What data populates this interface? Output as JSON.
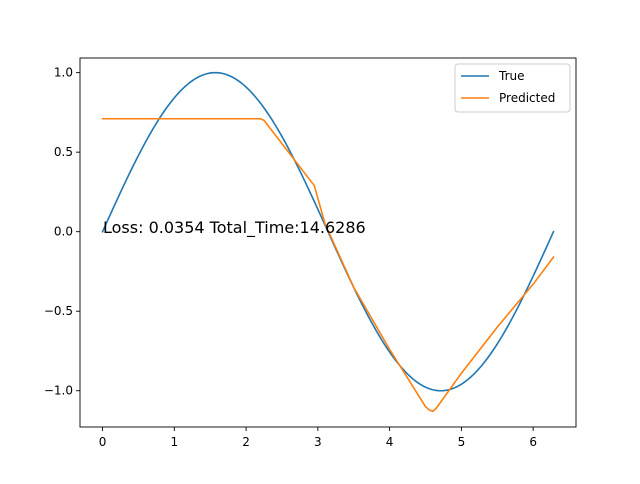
{
  "chart_data": {
    "type": "line",
    "xlim": [
      -0.314,
      6.597
    ],
    "ylim": [
      -1.228,
      1.092
    ],
    "x_ticks": [
      0,
      1,
      2,
      3,
      4,
      5,
      6
    ],
    "x_tick_labels": [
      "0",
      "1",
      "2",
      "3",
      "4",
      "5",
      "6"
    ],
    "y_ticks": [
      -1.0,
      -0.5,
      0.0,
      0.5,
      1.0
    ],
    "y_tick_labels": [
      "−1.0",
      "−0.5",
      "0.0",
      "0.5",
      "1.0"
    ],
    "grid": false,
    "legend_position": "top-right",
    "annotation": "Loss: 0.0354 Total_Time:14.6286",
    "series": [
      {
        "name": "True",
        "color": "#1f77b4",
        "function": "sin",
        "x_range": [
          0,
          6.2832
        ]
      },
      {
        "name": "Predicted",
        "color": "#ff7f0e",
        "x": [
          0.0,
          2.2,
          2.25,
          2.95,
          3.1,
          3.5,
          4.0,
          4.5,
          4.55,
          4.6,
          4.65,
          5.0,
          5.5,
          6.0,
          6.2832
        ],
        "y": [
          0.71,
          0.71,
          0.7,
          0.29,
          0.05,
          -0.35,
          -0.74,
          -1.1,
          -1.12,
          -1.13,
          -1.11,
          -0.89,
          -0.6,
          -0.33,
          -0.16
        ]
      }
    ]
  }
}
